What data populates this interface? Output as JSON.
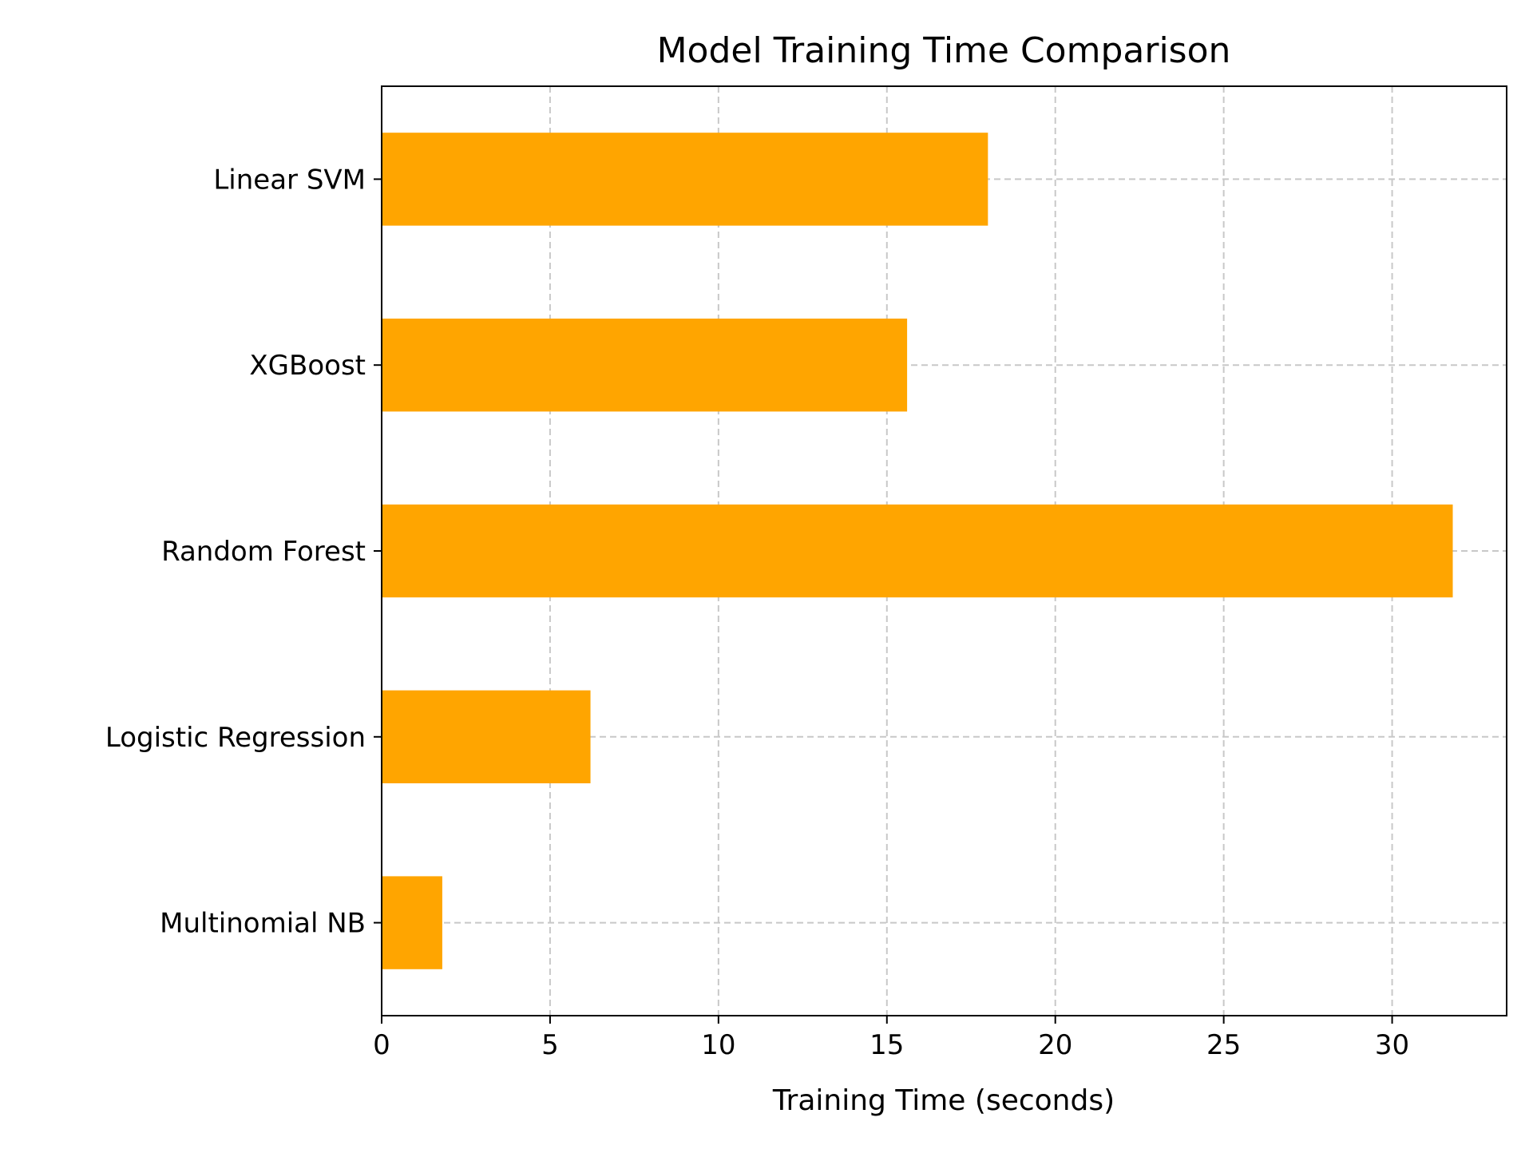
{
  "chart_data": {
    "type": "bar",
    "orientation": "horizontal",
    "title": "Model Training Time Comparison",
    "xlabel": "Training Time (seconds)",
    "ylabel": "",
    "categories": [
      "Linear SVM",
      "XGBoost",
      "Random Forest",
      "Logistic Regression",
      "Multinomial NB"
    ],
    "values": [
      18.0,
      15.6,
      31.8,
      6.2,
      1.8
    ],
    "xlim": [
      0,
      33.4
    ],
    "xticks": [
      0,
      5,
      10,
      15,
      20,
      25,
      30
    ],
    "grid": true,
    "legend": "none",
    "bar_color": "#FFA500",
    "grid_color": "#c8c8c8"
  }
}
